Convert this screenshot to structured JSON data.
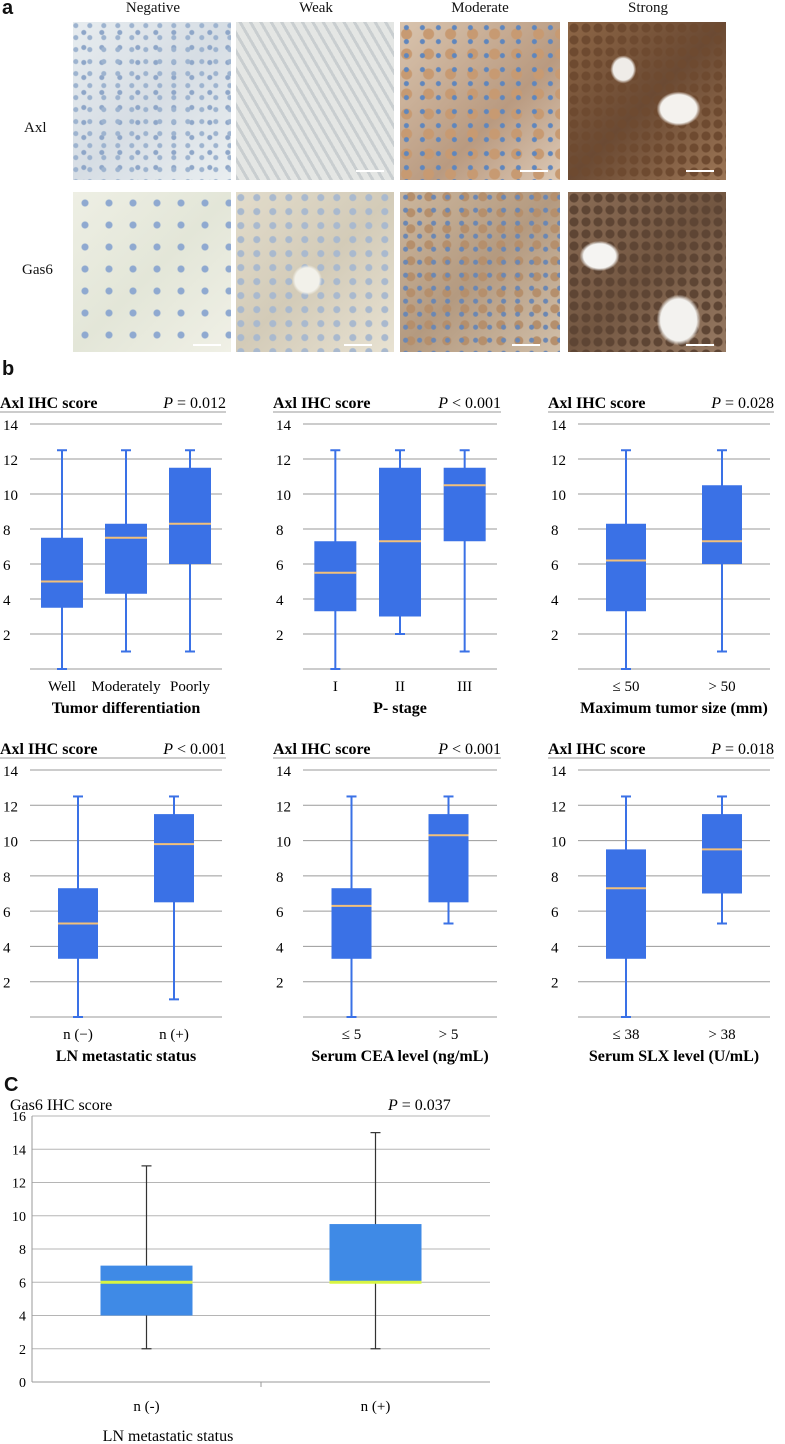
{
  "panel_a": {
    "letter": "a",
    "columns": [
      "Negative",
      "Weak",
      "Moderate",
      "Strong"
    ],
    "rows": [
      "Axl",
      "Gas6"
    ]
  },
  "panel_b": {
    "letter": "b"
  },
  "panel_c": {
    "letter": "C"
  },
  "chart_data": [
    {
      "type": "box",
      "title": "Axl IHC score",
      "pvalue": "P = 0.012",
      "xlabel": "Tumor differentiation",
      "ylim": [
        0,
        14
      ],
      "yticks": [
        2,
        4,
        6,
        8,
        10,
        12,
        14
      ],
      "categories": [
        "Well",
        "Moderately",
        "Poorly"
      ],
      "boxes": [
        {
          "min": 0,
          "q1": 3.5,
          "median": 5,
          "q3": 7.5,
          "max": 12.5
        },
        {
          "min": 1,
          "q1": 4.3,
          "median": 7.5,
          "q3": 8.3,
          "max": 12.5
        },
        {
          "min": 1,
          "q1": 6,
          "median": 8.3,
          "q3": 11.5,
          "max": 12.5
        }
      ]
    },
    {
      "type": "box",
      "title": "Axl IHC score",
      "pvalue": "P < 0.001",
      "xlabel": "P- stage",
      "ylim": [
        0,
        14
      ],
      "yticks": [
        2,
        4,
        6,
        8,
        10,
        12,
        14
      ],
      "categories": [
        "I",
        "II",
        "III"
      ],
      "boxes": [
        {
          "min": 0,
          "q1": 3.3,
          "median": 5.5,
          "q3": 7.3,
          "max": 12.5
        },
        {
          "min": 2,
          "q1": 3,
          "median": 7.3,
          "q3": 11.5,
          "max": 12.5
        },
        {
          "min": 1,
          "q1": 7.3,
          "median": 10.5,
          "q3": 11.5,
          "max": 12.5
        }
      ]
    },
    {
      "type": "box",
      "title": "Axl IHC score",
      "pvalue": "P = 0.028",
      "xlabel": "Maximum tumor size (mm)",
      "ylim": [
        0,
        14
      ],
      "yticks": [
        2,
        4,
        6,
        8,
        10,
        12,
        14
      ],
      "categories": [
        "≤ 50",
        "> 50"
      ],
      "boxes": [
        {
          "min": 0,
          "q1": 3.3,
          "median": 6.2,
          "q3": 8.3,
          "max": 12.5
        },
        {
          "min": 1,
          "q1": 6,
          "median": 7.3,
          "q3": 10.5,
          "max": 12.5
        }
      ]
    },
    {
      "type": "box",
      "title": "Axl IHC score",
      "pvalue": "P < 0.001",
      "xlabel": "LN metastatic status",
      "ylim": [
        0,
        14
      ],
      "yticks": [
        2,
        4,
        6,
        8,
        10,
        12,
        14
      ],
      "categories": [
        "n (−)",
        "n (+)"
      ],
      "boxes": [
        {
          "min": 0,
          "q1": 3.3,
          "median": 5.3,
          "q3": 7.3,
          "max": 12.5
        },
        {
          "min": 1,
          "q1": 6.5,
          "median": 9.8,
          "q3": 11.5,
          "max": 12.5
        }
      ]
    },
    {
      "type": "box",
      "title": "Axl IHC score",
      "pvalue": "P < 0.001",
      "xlabel": "Serum CEA level (ng/mL)",
      "ylim": [
        0,
        14
      ],
      "yticks": [
        2,
        4,
        6,
        8,
        10,
        12,
        14
      ],
      "categories": [
        "≤ 5",
        "> 5"
      ],
      "boxes": [
        {
          "min": 0,
          "q1": 3.3,
          "median": 6.3,
          "q3": 7.3,
          "max": 12.5
        },
        {
          "min": 5.3,
          "q1": 6.5,
          "median": 10.3,
          "q3": 11.5,
          "max": 12.5
        }
      ]
    },
    {
      "type": "box",
      "title": "Axl IHC score",
      "pvalue": "P = 0.018",
      "xlabel": "Serum SLX level (U/mL)",
      "ylim": [
        0,
        14
      ],
      "yticks": [
        2,
        4,
        6,
        8,
        10,
        12,
        14
      ],
      "categories": [
        "≤ 38",
        "> 38"
      ],
      "boxes": [
        {
          "min": 0,
          "q1": 3.3,
          "median": 7.3,
          "q3": 9.5,
          "max": 12.5
        },
        {
          "min": 5.3,
          "q1": 7,
          "median": 9.5,
          "q3": 11.5,
          "max": 12.5
        }
      ]
    },
    {
      "type": "box",
      "title": "Gas6 IHC score",
      "pvalue": "P = 0.037",
      "xlabel": "LN metastatic status",
      "ylim": [
        0,
        16
      ],
      "yticks": [
        0,
        2,
        4,
        6,
        8,
        10,
        12,
        14,
        16
      ],
      "categories": [
        "n (-)",
        "n (+)"
      ],
      "boxes": [
        {
          "min": 2,
          "q1": 4,
          "median": 6,
          "q3": 7,
          "max": 13
        },
        {
          "min": 2,
          "q1": 6,
          "median": 6,
          "q3": 9.5,
          "max": 15
        }
      ]
    }
  ],
  "colors": {
    "box_b": "#3a71e6",
    "median_b": "#f2c07a",
    "whisker_b": "#3a71e6",
    "box_c": "#3f8ae6",
    "median_c": "#d8f542",
    "whisker_c": "#333333",
    "grid": "#9a9a9a"
  }
}
